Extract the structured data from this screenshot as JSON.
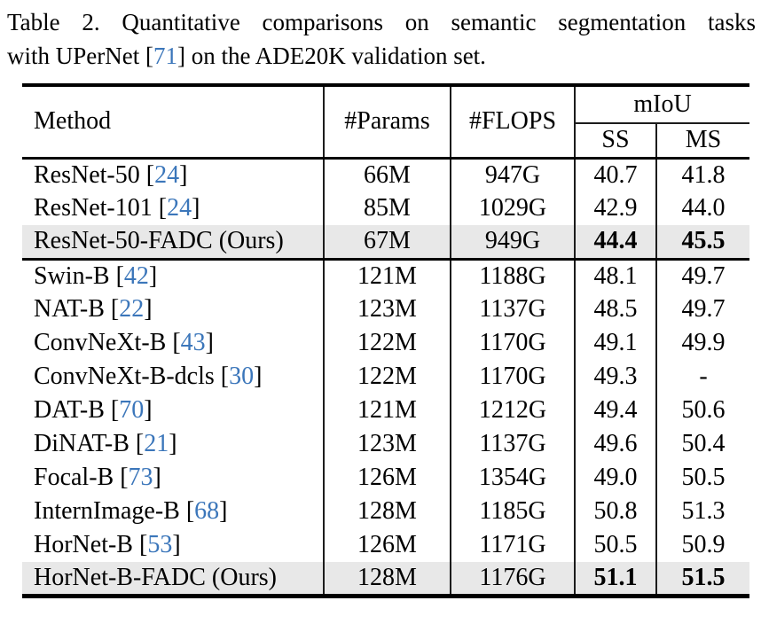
{
  "caption": {
    "line1": "Table 2. Quantitative comparisons on semantic segmentation tasks",
    "line2_pre": "with UPerNet ",
    "bracket_open": "[",
    "cite": "71",
    "bracket_close": "]",
    "line2_post": " on the ADE20K validation set."
  },
  "colors": {
    "citation_blue": "#3b76ba",
    "highlight_row": "#e8e8e8"
  },
  "table": {
    "headers": {
      "method": "Method",
      "params": "#Params",
      "flops": "#FLOPS",
      "miou": "mIoU",
      "ss": "SS",
      "ms": "MS"
    },
    "cite_open": " [",
    "cite_close": "]",
    "groups": [
      {
        "rows": [
          {
            "method": "ResNet-50",
            "cite": "24",
            "params": "66M",
            "flops": "947G",
            "ss": "40.7",
            "ms": "41.8",
            "bold": false,
            "highlight": false
          },
          {
            "method": "ResNet-101",
            "cite": "24",
            "params": "85M",
            "flops": "1029G",
            "ss": "42.9",
            "ms": "44.0",
            "bold": false,
            "highlight": false
          },
          {
            "method": "ResNet-50-FADC (Ours)",
            "cite": "",
            "params": "67M",
            "flops": "949G",
            "ss": "44.4",
            "ms": "45.5",
            "bold": true,
            "highlight": true
          }
        ]
      },
      {
        "rows": [
          {
            "method": "Swin-B",
            "cite": "42",
            "params": "121M",
            "flops": "1188G",
            "ss": "48.1",
            "ms": "49.7",
            "bold": false,
            "highlight": false
          },
          {
            "method": "NAT-B",
            "cite": "22",
            "params": "123M",
            "flops": "1137G",
            "ss": "48.5",
            "ms": "49.7",
            "bold": false,
            "highlight": false
          },
          {
            "method": "ConvNeXt-B",
            "cite": "43",
            "params": "122M",
            "flops": "1170G",
            "ss": "49.1",
            "ms": "49.9",
            "bold": false,
            "highlight": false
          },
          {
            "method": "ConvNeXt-B-dcls",
            "cite": "30",
            "params": "122M",
            "flops": "1170G",
            "ss": "49.3",
            "ms": "-",
            "bold": false,
            "highlight": false
          },
          {
            "method": "DAT-B",
            "cite": "70",
            "params": "121M",
            "flops": "1212G",
            "ss": "49.4",
            "ms": "50.6",
            "bold": false,
            "highlight": false
          },
          {
            "method": "DiNAT-B",
            "cite": "21",
            "params": "123M",
            "flops": "1137G",
            "ss": "49.6",
            "ms": "50.4",
            "bold": false,
            "highlight": false
          },
          {
            "method": "Focal-B",
            "cite": "73",
            "params": "126M",
            "flops": "1354G",
            "ss": "49.0",
            "ms": "50.5",
            "bold": false,
            "highlight": false
          },
          {
            "method": "InternImage-B",
            "cite": "68",
            "params": "128M",
            "flops": "1185G",
            "ss": "50.8",
            "ms": "51.3",
            "bold": false,
            "highlight": false
          },
          {
            "method": "HorNet-B",
            "cite": "53",
            "params": "126M",
            "flops": "1171G",
            "ss": "50.5",
            "ms": "50.9",
            "bold": false,
            "highlight": false
          },
          {
            "method": "HorNet-B-FADC (Ours)",
            "cite": "",
            "params": "128M",
            "flops": "1176G",
            "ss": "51.1",
            "ms": "51.5",
            "bold": true,
            "highlight": true
          }
        ]
      }
    ]
  }
}
